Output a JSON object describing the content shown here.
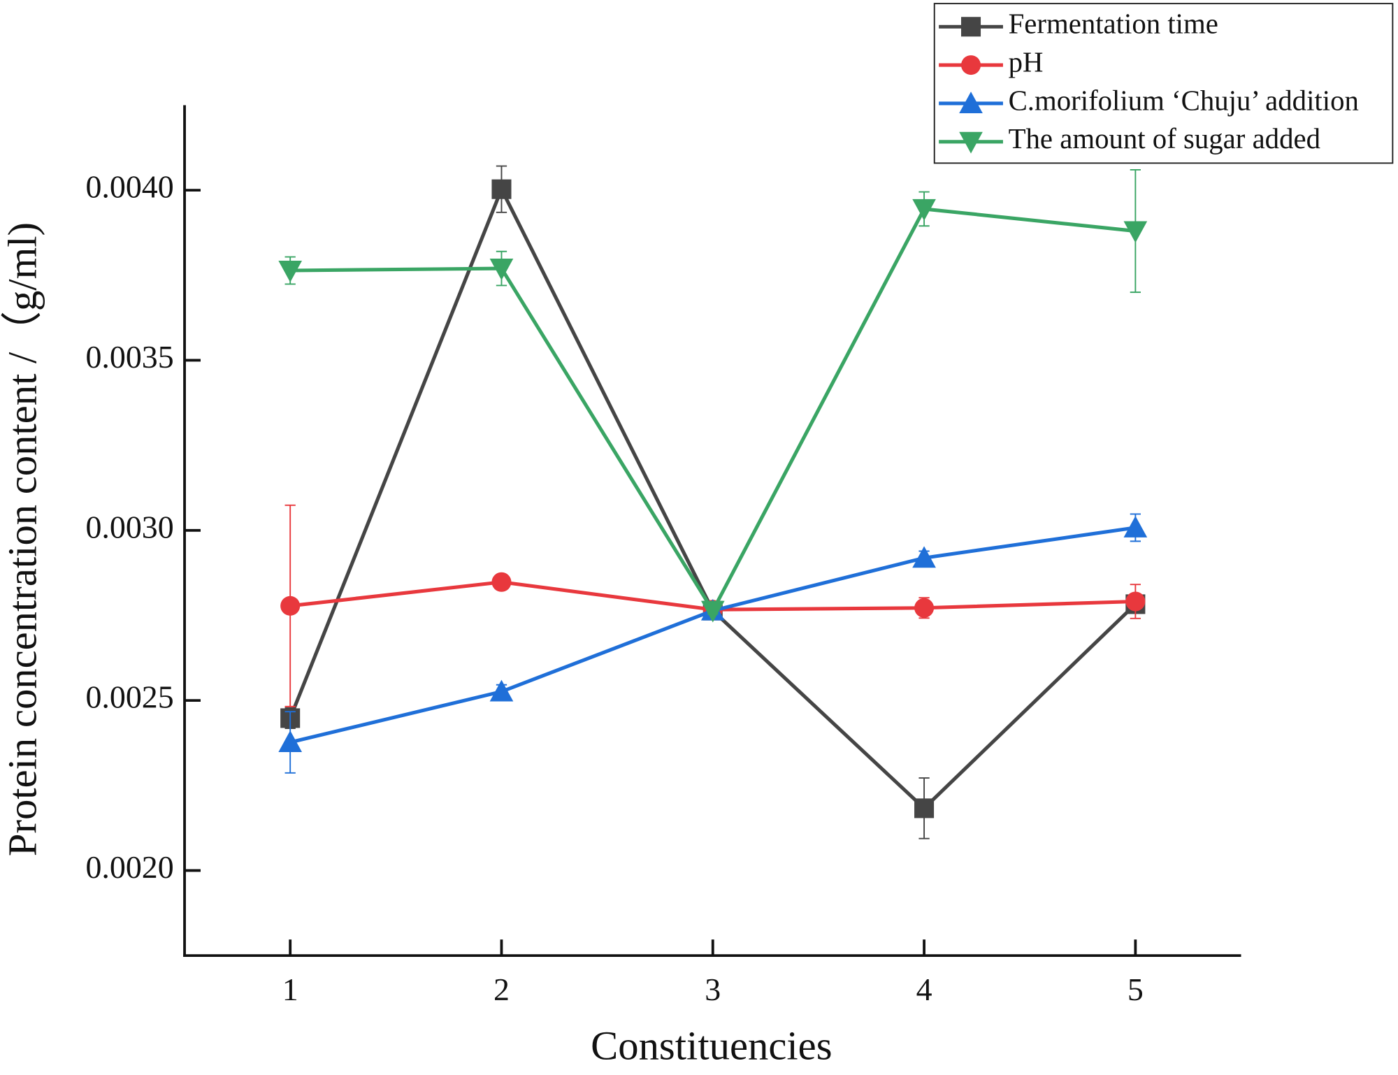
{
  "chart_data": {
    "type": "line",
    "xlabel": "Constituencies",
    "ylabel": "Protein concentration content /（g/ml)",
    "x": [
      1,
      2,
      3,
      4,
      5
    ],
    "xlim": [
      0.5,
      5.5
    ],
    "xticks": [
      1,
      2,
      3,
      4,
      5
    ],
    "ylim": [
      0.00175,
      0.00425
    ],
    "yticks": [
      {
        "value": 0.002,
        "label": "0.0020"
      },
      {
        "value": 0.0025,
        "label": "0.0025"
      },
      {
        "value": 0.003,
        "label": "0.0030"
      },
      {
        "value": 0.0035,
        "label": "0.0035"
      },
      {
        "value": 0.004,
        "label": "0.0040"
      }
    ],
    "legend": "upper right",
    "series": [
      {
        "name": "Fermentation time",
        "color": "#454545",
        "marker": "square",
        "values": [
          0.002448,
          0.004003,
          0.002764,
          0.002183,
          0.002783
        ],
        "errors": [
          3e-05,
          6.8e-05,
          1e-05,
          8.9e-05,
          2e-05
        ]
      },
      {
        "name": "pH",
        "color": "#e8383d",
        "marker": "circle",
        "values": [
          0.002778,
          0.002848,
          0.002767,
          0.002772,
          0.002791
        ],
        "errors": [
          0.000296,
          1e-05,
          1e-05,
          3e-05,
          5e-05
        ]
      },
      {
        "name": "C.morifolium ‘Chuju’ addition",
        "color": "#1f6fd8",
        "marker": "triangle-up",
        "values": [
          0.002377,
          0.002526,
          0.002764,
          0.002919,
          0.003008
        ],
        "errors": [
          9e-05,
          2e-05,
          1e-05,
          2e-05,
          4e-05
        ]
      },
      {
        "name": "The amount of sugar added",
        "color": "#3aa564",
        "marker": "triangle-down",
        "values": [
          0.003764,
          0.00377,
          0.002764,
          0.003945,
          0.00388
        ],
        "errors": [
          4e-05,
          5e-05,
          1e-05,
          5e-05,
          0.00018
        ]
      }
    ]
  }
}
